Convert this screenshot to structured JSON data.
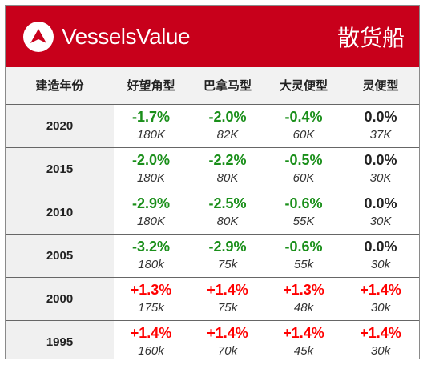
{
  "header": {
    "brand": "VesselsValue",
    "logo_icon": "vesselsvalue-logo-icon",
    "title": "散货船",
    "background_color": "#c8001b"
  },
  "table": {
    "columns": [
      "建造年份",
      "好望角型",
      "巴拿马型",
      "大灵便型",
      "灵便型"
    ],
    "rows": [
      {
        "year": "2020",
        "cells": [
          {
            "change": "-1.7%",
            "status": "neg",
            "price": "180K"
          },
          {
            "change": "-2.0%",
            "status": "neg",
            "price": "82K"
          },
          {
            "change": "-0.4%",
            "status": "neg",
            "price": "60K"
          },
          {
            "change": "0.0%",
            "status": "zero",
            "price": "37K"
          }
        ]
      },
      {
        "year": "2015",
        "cells": [
          {
            "change": "-2.0%",
            "status": "neg",
            "price": "180K"
          },
          {
            "change": "-2.2%",
            "status": "neg",
            "price": "80K"
          },
          {
            "change": "-0.5%",
            "status": "neg",
            "price": "60K"
          },
          {
            "change": "0.0%",
            "status": "zero",
            "price": "30K"
          }
        ]
      },
      {
        "year": "2010",
        "cells": [
          {
            "change": "-2.9%",
            "status": "neg",
            "price": "180K"
          },
          {
            "change": "-2.5%",
            "status": "neg",
            "price": "80K"
          },
          {
            "change": "-0.6%",
            "status": "neg",
            "price": "55K"
          },
          {
            "change": "0.0%",
            "status": "zero",
            "price": "30K"
          }
        ]
      },
      {
        "year": "2005",
        "cells": [
          {
            "change": "-3.2%",
            "status": "neg",
            "price": "180k"
          },
          {
            "change": "-2.9%",
            "status": "neg",
            "price": "75k"
          },
          {
            "change": "-0.6%",
            "status": "neg",
            "price": "55k"
          },
          {
            "change": "0.0%",
            "status": "zero",
            "price": "30k"
          }
        ]
      },
      {
        "year": "2000",
        "cells": [
          {
            "change": "+1.3%",
            "status": "pos",
            "price": "175k"
          },
          {
            "change": "+1.4%",
            "status": "pos",
            "price": "75k"
          },
          {
            "change": "+1.3%",
            "status": "pos",
            "price": "48k"
          },
          {
            "change": "+1.4%",
            "status": "pos",
            "price": "30k"
          }
        ]
      },
      {
        "year": "1995",
        "cells": [
          {
            "change": "+1.4%",
            "status": "pos",
            "price": "160k"
          },
          {
            "change": "+1.4%",
            "status": "pos",
            "price": "70k"
          },
          {
            "change": "+1.4%",
            "status": "pos",
            "price": "45k"
          },
          {
            "change": "+1.4%",
            "status": "pos",
            "price": "30k"
          }
        ]
      }
    ],
    "colors": {
      "negative": "#1a8f1a",
      "zero": "#222222",
      "positive": "#ff0000"
    }
  }
}
